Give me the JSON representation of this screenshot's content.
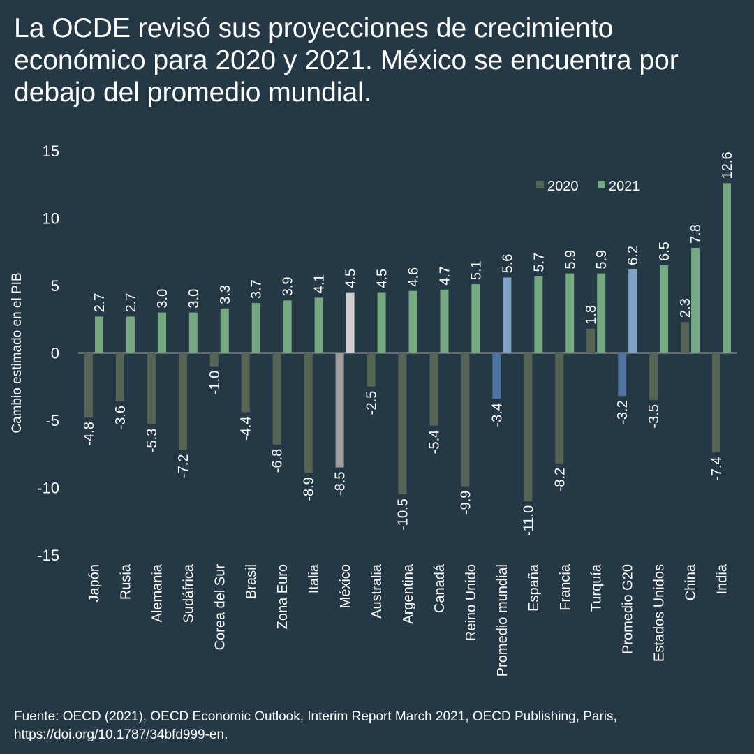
{
  "title": "La OCDE revisó sus proyecciones de crecimiento económico para 2020 y 2021. México se encuentra por debajo del promedio mundial.",
  "source": "Fuente: OECD (2021), OECD Economic Outlook, Interim Report March 2021, OECD Publishing, Paris, https://doi.org/10.1787/34bfd999-en.",
  "colors": {
    "background": "#253845",
    "series_2020": "#566455",
    "series_2021": "#76a982",
    "highlight_world_2020": "#4f73a3",
    "highlight_world_2021": "#7fa2c8",
    "highlight_mexico_2020": "#9c9c9c",
    "highlight_mexico_2021": "#cfcfcf"
  },
  "chart_data": {
    "type": "bar",
    "title": "",
    "xlabel": "",
    "ylabel": "Cambio estimado en el PIB",
    "ylim": [
      -15,
      15
    ],
    "yticks": [
      15,
      10,
      5,
      0,
      -5,
      -10,
      -15
    ],
    "legend_position": "top-right",
    "grid": false,
    "categories": [
      "Japón",
      "Rusia",
      "Alemania",
      "Sudáfrica",
      "Corea del Sur",
      "Brasil",
      "Zona Euro",
      "Italia",
      "México",
      "Australia",
      "Argentina",
      "Canadá",
      "Reino Unido",
      "Promedio mundial",
      "España",
      "Francia",
      "Turquía",
      "Promedio G20",
      "Estados Unidos",
      "China",
      "India"
    ],
    "series": [
      {
        "name": "2020",
        "values": [
          -4.8,
          -3.6,
          -5.3,
          -7.2,
          -1.0,
          -4.4,
          -6.8,
          -8.9,
          -8.5,
          -2.5,
          -10.5,
          -5.4,
          -9.9,
          -3.4,
          -11.0,
          -8.2,
          1.8,
          -3.2,
          -3.5,
          2.3,
          -7.4
        ]
      },
      {
        "name": "2021",
        "values": [
          2.7,
          2.7,
          3.0,
          3.0,
          3.3,
          3.7,
          3.9,
          4.1,
          4.5,
          4.5,
          4.6,
          4.7,
          5.1,
          5.6,
          5.7,
          5.9,
          5.9,
          6.2,
          6.5,
          7.8,
          12.6
        ]
      }
    ],
    "highlights": {
      "Promedio mundial": "world",
      "Promedio G20": "world",
      "México": "mexico"
    }
  }
}
